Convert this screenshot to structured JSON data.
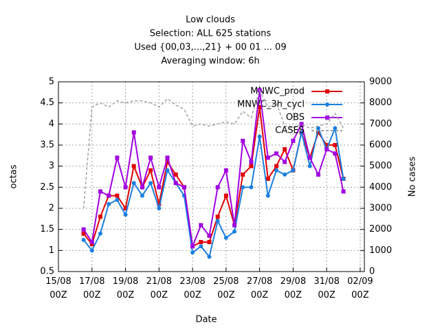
{
  "chart_data": {
    "type": "line",
    "title": "Low clouds",
    "subtitle": [
      "Selection: ALL    625 stations",
      "Used {00,03,...,21} + 00 01 ... 09",
      "Averaging window:  6h"
    ],
    "xlabel": "Date",
    "ylabel": "octas",
    "y2label": "No cases",
    "x": [
      "16/08 12Z",
      "17/08 00Z",
      "17/08 12Z",
      "18/08 00Z",
      "18/08 12Z",
      "19/08 00Z",
      "19/08 12Z",
      "20/08 00Z",
      "20/08 12Z",
      "21/08 00Z",
      "21/08 12Z",
      "22/08 00Z",
      "22/08 12Z",
      "23/08 00Z",
      "23/08 12Z",
      "24/08 00Z",
      "24/08 12Z",
      "25/08 00Z",
      "25/08 12Z",
      "26/08 00Z",
      "26/08 12Z",
      "27/08 00Z",
      "27/08 12Z",
      "28/08 00Z",
      "28/08 12Z",
      "29/08 00Z",
      "29/08 12Z",
      "30/08 00Z",
      "30/08 12Z",
      "31/08 00Z",
      "31/08 12Z",
      "01/09 00Z"
    ],
    "xlim": [
      "15/08 00Z",
      "02/09 06Z"
    ],
    "xticks": [
      "15/08 00Z",
      "17/08 00Z",
      "19/08 00Z",
      "21/08 00Z",
      "23/08 00Z",
      "25/08 00Z",
      "27/08 00Z",
      "29/08 00Z",
      "31/08 00Z",
      "02/09 00Z"
    ],
    "ylim": [
      0.5,
      5
    ],
    "yticks": [
      0.5,
      1,
      1.5,
      2,
      2.5,
      3,
      3.5,
      4,
      4.5,
      5
    ],
    "y2lim": [
      0,
      9000
    ],
    "y2ticks": [
      0,
      1000,
      2000,
      3000,
      4000,
      5000,
      6000,
      7000,
      8000,
      9000
    ],
    "grid": true,
    "legend": "top-right",
    "series": [
      {
        "name": "MNWC_prod",
        "color": "#e00000",
        "marker": "square",
        "values": [
          1.4,
          1.15,
          1.8,
          2.3,
          2.3,
          2.0,
          3.0,
          2.5,
          2.9,
          2.1,
          3.1,
          2.8,
          2.5,
          1.1,
          1.2,
          1.2,
          1.8,
          2.3,
          1.6,
          2.8,
          3.0,
          4.4,
          2.7,
          3.0,
          3.4,
          2.9,
          3.8,
          3.2,
          3.8,
          3.5,
          3.5,
          2.7
        ]
      },
      {
        "name": "MNWC_3h_cycl",
        "color": "#1a7fe0",
        "marker": "circle",
        "values": [
          1.25,
          1.0,
          1.4,
          2.1,
          2.2,
          1.85,
          2.6,
          2.3,
          2.6,
          2.0,
          2.9,
          2.6,
          2.3,
          0.95,
          1.1,
          0.85,
          1.7,
          1.3,
          1.45,
          2.5,
          2.5,
          3.7,
          2.3,
          2.9,
          2.8,
          2.9,
          3.8,
          3.0,
          3.9,
          3.4,
          3.9,
          2.7
        ]
      },
      {
        "name": "OBS",
        "color": "#a000e0",
        "marker": "square",
        "values": [
          1.5,
          1.2,
          2.4,
          2.3,
          3.2,
          2.5,
          3.8,
          2.5,
          3.2,
          2.5,
          3.2,
          2.6,
          2.5,
          1.1,
          1.6,
          1.35,
          2.5,
          2.9,
          1.6,
          3.6,
          3.1,
          4.8,
          3.2,
          3.3,
          3.1,
          3.6,
          4.0,
          3.2,
          2.8,
          3.4,
          3.3,
          2.4
        ]
      },
      {
        "name": "CASES",
        "color": "#a0a0a0",
        "axis": "y2",
        "dashed": true,
        "values": [
          3000,
          7800,
          8000,
          7800,
          8100,
          8000,
          8100,
          8100,
          8000,
          7800,
          8200,
          7900,
          7700,
          6900,
          7000,
          6900,
          7000,
          7100,
          7000,
          7600,
          7300,
          8600,
          7800,
          8000,
          6900,
          6800,
          7000,
          6800,
          6900,
          7000,
          7500,
          6800
        ]
      }
    ]
  }
}
